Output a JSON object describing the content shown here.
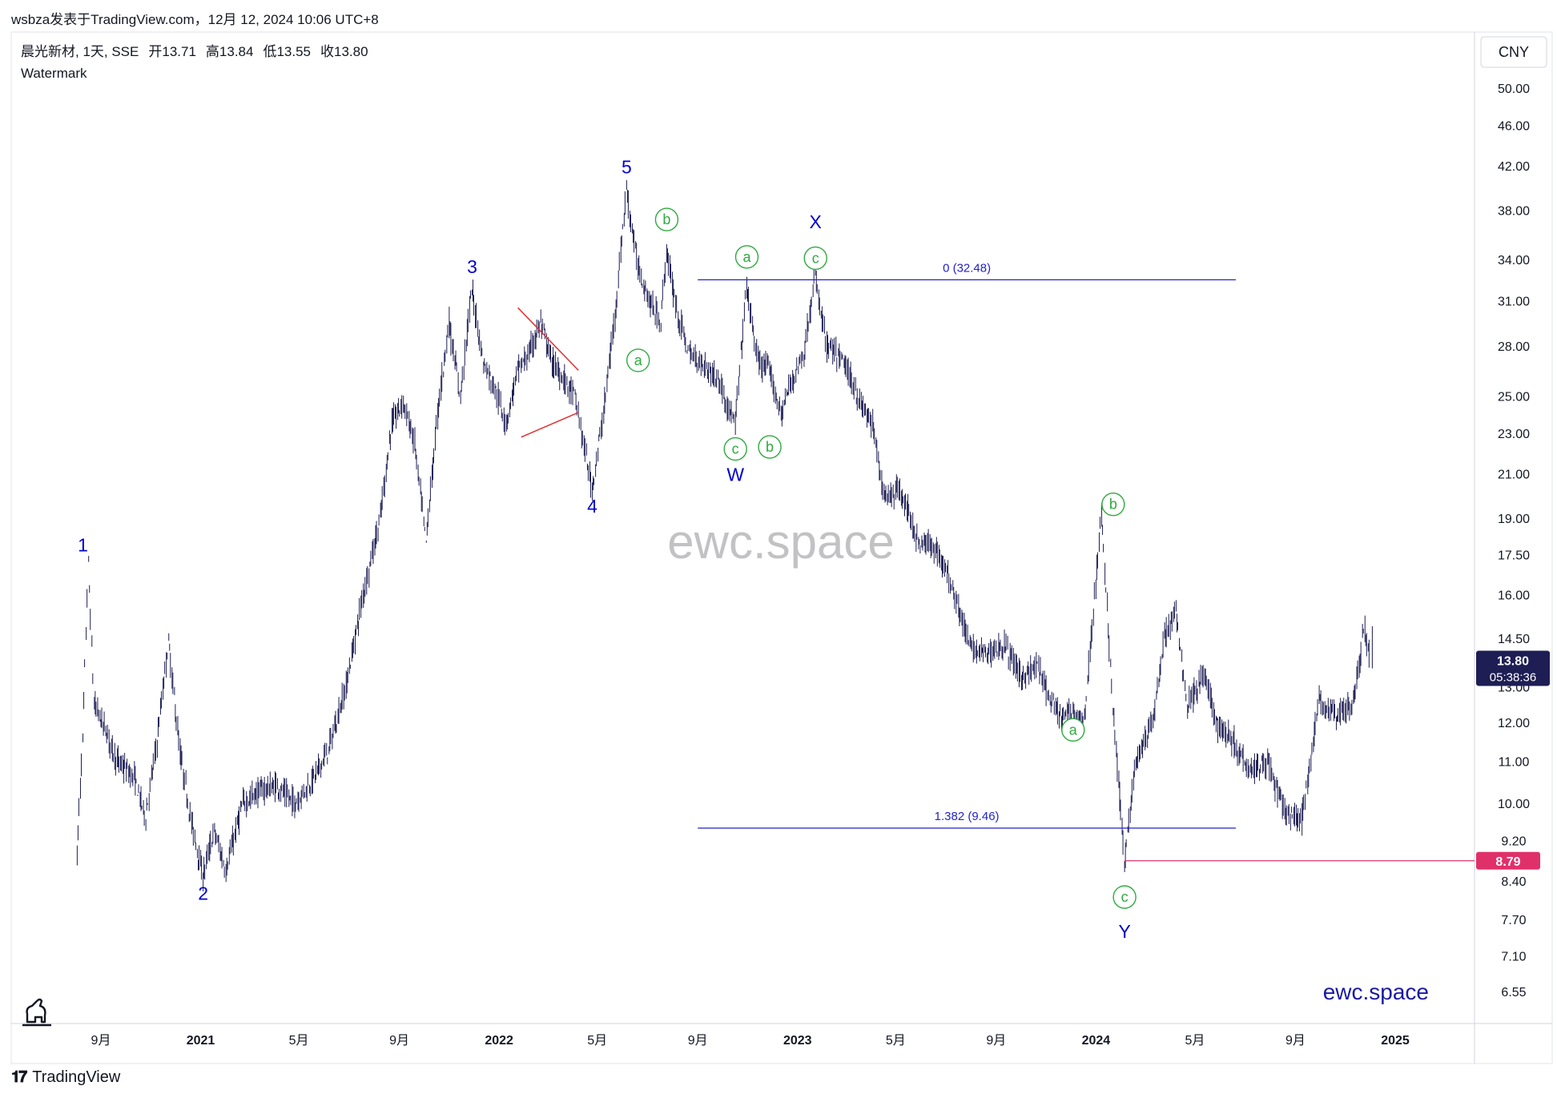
{
  "header_text": "wsbza发表于TradingView.com，12月 12, 2024 10:06 UTC+8",
  "footer_brand": "TradingView",
  "colors": {
    "wave": "#0000cc",
    "sub": "#2eaa3f",
    "candle": "#1e1e55",
    "fib": "#2222cc",
    "low_line": "#e0306a",
    "triangle": "#e03030"
  },
  "chart_data": {
    "type": "candlestick",
    "symbol_line": {
      "name": "晨光新材, 1天, SSE",
      "open_label": "开",
      "open": "13.71",
      "high_label": "高",
      "high": "13.84",
      "low_label": "低",
      "low": "13.55",
      "close_label": "收",
      "close": "13.80"
    },
    "indicator": "Watermark",
    "currency": "CNY",
    "y_scale": "log",
    "y_ticks": [
      "50.00",
      "46.00",
      "42.00",
      "38.00",
      "34.00",
      "31.00",
      "28.00",
      "25.00",
      "23.00",
      "21.00",
      "19.00",
      "17.50",
      "16.00",
      "14.50",
      "13.00",
      "12.00",
      "11.00",
      "10.00",
      "9.20",
      "8.40",
      "7.70",
      "7.10",
      "6.55"
    ],
    "x_ticks": [
      "9月",
      "2021",
      "5月",
      "9月",
      "2022",
      "5月",
      "9月",
      "2023",
      "5月",
      "9月",
      "2024",
      "5月",
      "9月",
      "2025"
    ],
    "last_price": {
      "value": "13.80",
      "countdown": "05:38:36"
    },
    "low_marker": {
      "value": "8.79"
    },
    "fib_levels": [
      {
        "label": "0 (32.48)",
        "price": 32.48
      },
      {
        "label": "1.382 (9.46)",
        "price": 9.46
      }
    ],
    "path": [
      [
        "2020-08-03",
        8.9
      ],
      [
        "2020-08-10",
        11.5
      ],
      [
        "2020-08-17",
        17.2
      ],
      [
        "2020-08-24",
        12.5
      ],
      [
        "2020-09-07",
        11.8
      ],
      [
        "2020-09-21",
        11.0
      ],
      [
        "2020-10-12",
        10.6
      ],
      [
        "2020-10-26",
        9.7
      ],
      [
        "2020-11-09",
        11.5
      ],
      [
        "2020-11-23",
        14.4
      ],
      [
        "2020-12-07",
        11.2
      ],
      [
        "2020-12-21",
        9.6
      ],
      [
        "2021-01-04",
        8.5
      ],
      [
        "2021-01-18",
        9.4
      ],
      [
        "2021-02-01",
        8.6
      ],
      [
        "2021-02-22",
        10.0
      ],
      [
        "2021-03-15",
        10.3
      ],
      [
        "2021-04-05",
        10.4
      ],
      [
        "2021-04-26",
        10.0
      ],
      [
        "2021-05-17",
        10.5
      ],
      [
        "2021-06-07",
        11.3
      ],
      [
        "2021-06-28",
        13.0
      ],
      [
        "2021-07-19",
        16.0
      ],
      [
        "2021-08-09",
        19.0
      ],
      [
        "2021-08-23",
        23.5
      ],
      [
        "2021-09-06",
        24.7
      ],
      [
        "2021-09-20",
        22.5
      ],
      [
        "2021-10-04",
        18.0
      ],
      [
        "2021-10-18",
        24.0
      ],
      [
        "2021-11-01",
        29.5
      ],
      [
        "2021-11-15",
        25.0
      ],
      [
        "2021-11-29",
        31.8
      ],
      [
        "2021-12-13",
        27.0
      ],
      [
        "2021-12-27",
        25.5
      ],
      [
        "2022-01-10",
        23.5
      ],
      [
        "2022-01-24",
        26.5
      ],
      [
        "2022-02-07",
        27.5
      ],
      [
        "2022-02-21",
        29.5
      ],
      [
        "2022-03-07",
        27.0
      ],
      [
        "2022-03-21",
        26.0
      ],
      [
        "2022-04-04",
        25.0
      ],
      [
        "2022-04-25",
        20.3
      ],
      [
        "2022-05-09",
        24.0
      ],
      [
        "2022-05-23",
        30.0
      ],
      [
        "2022-06-06",
        39.8
      ],
      [
        "2022-06-20",
        33.5
      ],
      [
        "2022-07-04",
        31.0
      ],
      [
        "2022-07-18",
        29.5
      ],
      [
        "2022-07-25",
        34.6
      ],
      [
        "2022-08-08",
        30.0
      ],
      [
        "2022-08-22",
        27.5
      ],
      [
        "2022-09-05",
        27.0
      ],
      [
        "2022-09-26",
        26.0
      ],
      [
        "2022-10-17",
        23.4
      ],
      [
        "2022-10-31",
        32.0
      ],
      [
        "2022-11-14",
        27.0
      ],
      [
        "2022-11-28",
        26.5
      ],
      [
        "2022-12-12",
        24.0
      ],
      [
        "2022-12-26",
        26.0
      ],
      [
        "2023-01-09",
        27.5
      ],
      [
        "2023-01-23",
        32.7
      ],
      [
        "2023-02-06",
        28.0
      ],
      [
        "2023-02-27",
        27.0
      ],
      [
        "2023-03-20",
        24.5
      ],
      [
        "2023-04-03",
        23.5
      ],
      [
        "2023-04-17",
        20.0
      ],
      [
        "2023-05-08",
        20.2
      ],
      [
        "2023-05-29",
        18.0
      ],
      [
        "2023-06-19",
        17.8
      ],
      [
        "2023-07-10",
        16.3
      ],
      [
        "2023-07-31",
        14.2
      ],
      [
        "2023-08-21",
        14.0
      ],
      [
        "2023-09-11",
        14.3
      ],
      [
        "2023-10-02",
        13.3
      ],
      [
        "2023-10-23",
        13.6
      ],
      [
        "2023-11-06",
        12.6
      ],
      [
        "2023-11-20",
        12.1
      ],
      [
        "2023-12-04",
        12.3
      ],
      [
        "2023-12-18",
        12.0
      ],
      [
        "2024-01-08",
        19.2
      ],
      [
        "2024-01-22",
        12.5
      ],
      [
        "2024-02-05",
        8.79
      ],
      [
        "2024-02-19",
        11.0
      ],
      [
        "2024-03-11",
        12.0
      ],
      [
        "2024-03-25",
        14.5
      ],
      [
        "2024-04-08",
        15.4
      ],
      [
        "2024-04-22",
        12.5
      ],
      [
        "2024-05-13",
        13.4
      ],
      [
        "2024-05-27",
        12.0
      ],
      [
        "2024-06-17",
        11.5
      ],
      [
        "2024-07-08",
        10.8
      ],
      [
        "2024-07-29",
        11.0
      ],
      [
        "2024-08-19",
        9.8
      ],
      [
        "2024-09-09",
        9.6
      ],
      [
        "2024-09-30",
        12.6
      ],
      [
        "2024-10-21",
        12.2
      ],
      [
        "2024-11-11",
        12.5
      ],
      [
        "2024-11-25",
        14.9
      ],
      [
        "2024-12-02",
        13.8
      ]
    ]
  },
  "annotations": {
    "wave_labels": [
      {
        "text": "1",
        "date": "2020-08-10",
        "price": 17.0,
        "pos": "above"
      },
      {
        "text": "2",
        "date": "2021-01-04",
        "price": 8.5,
        "pos": "below"
      },
      {
        "text": "3",
        "date": "2021-11-29",
        "price": 31.8,
        "pos": "above"
      },
      {
        "text": "4",
        "date": "2022-04-25",
        "price": 20.3,
        "pos": "below"
      },
      {
        "text": "5",
        "date": "2022-06-06",
        "price": 39.8,
        "pos": "above"
      },
      {
        "text": "W",
        "date": "2022-10-17",
        "price": 21.8,
        "pos": "below"
      },
      {
        "text": "X",
        "date": "2023-01-23",
        "price": 35.2,
        "pos": "above"
      },
      {
        "text": "Y",
        "date": "2024-02-05",
        "price": 7.8,
        "pos": "below"
      }
    ],
    "sub_labels": [
      {
        "text": "a",
        "date": "2022-06-20",
        "price": 27.1
      },
      {
        "text": "b",
        "date": "2022-07-25",
        "price": 37.2
      },
      {
        "text": "c",
        "date": "2022-10-17",
        "price": 22.2
      },
      {
        "text": "a",
        "date": "2022-10-31",
        "price": 34.2
      },
      {
        "text": "b",
        "date": "2022-11-28",
        "price": 22.3
      },
      {
        "text": "c",
        "date": "2023-01-23",
        "price": 34.1
      },
      {
        "text": "a",
        "date": "2023-12-04",
        "price": 11.8
      },
      {
        "text": "b",
        "date": "2024-01-22",
        "price": 19.6
      },
      {
        "text": "c",
        "date": "2024-02-05",
        "price": 8.1
      }
    ],
    "watermark_center": "ewc.space",
    "watermark_corner": "ewc.space"
  }
}
